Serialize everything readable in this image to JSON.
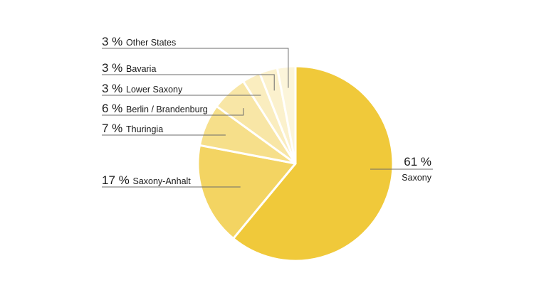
{
  "chart_data": {
    "type": "pie",
    "title": "",
    "slices": [
      {
        "label": "Saxony",
        "value": 61,
        "pct_label": "61 %",
        "color": "#f0c93a"
      },
      {
        "label": "Saxony-Anhalt",
        "value": 17,
        "pct_label": "17 %",
        "color": "#f3d462"
      },
      {
        "label": "Thuringia",
        "value": 7,
        "pct_label": "7 %",
        "color": "#f6df8a"
      },
      {
        "label": "Berlin / Brandenburg",
        "value": 6,
        "pct_label": "6 %",
        "color": "#f8e6a6"
      },
      {
        "label": "Lower Saxony",
        "value": 3,
        "pct_label": "3 %",
        "color": "#faedbf"
      },
      {
        "label": "Bavaria",
        "value": 3,
        "pct_label": "3 %",
        "color": "#fbf1cd"
      },
      {
        "label": "Other States",
        "value": 3,
        "pct_label": "3 %",
        "color": "#fcf5da"
      }
    ],
    "slice_separator_color": "#ffffff",
    "leader_line_color": "#6b6b6b",
    "start_angle": "12 o'clock",
    "direction": "clockwise",
    "legend": "none"
  }
}
